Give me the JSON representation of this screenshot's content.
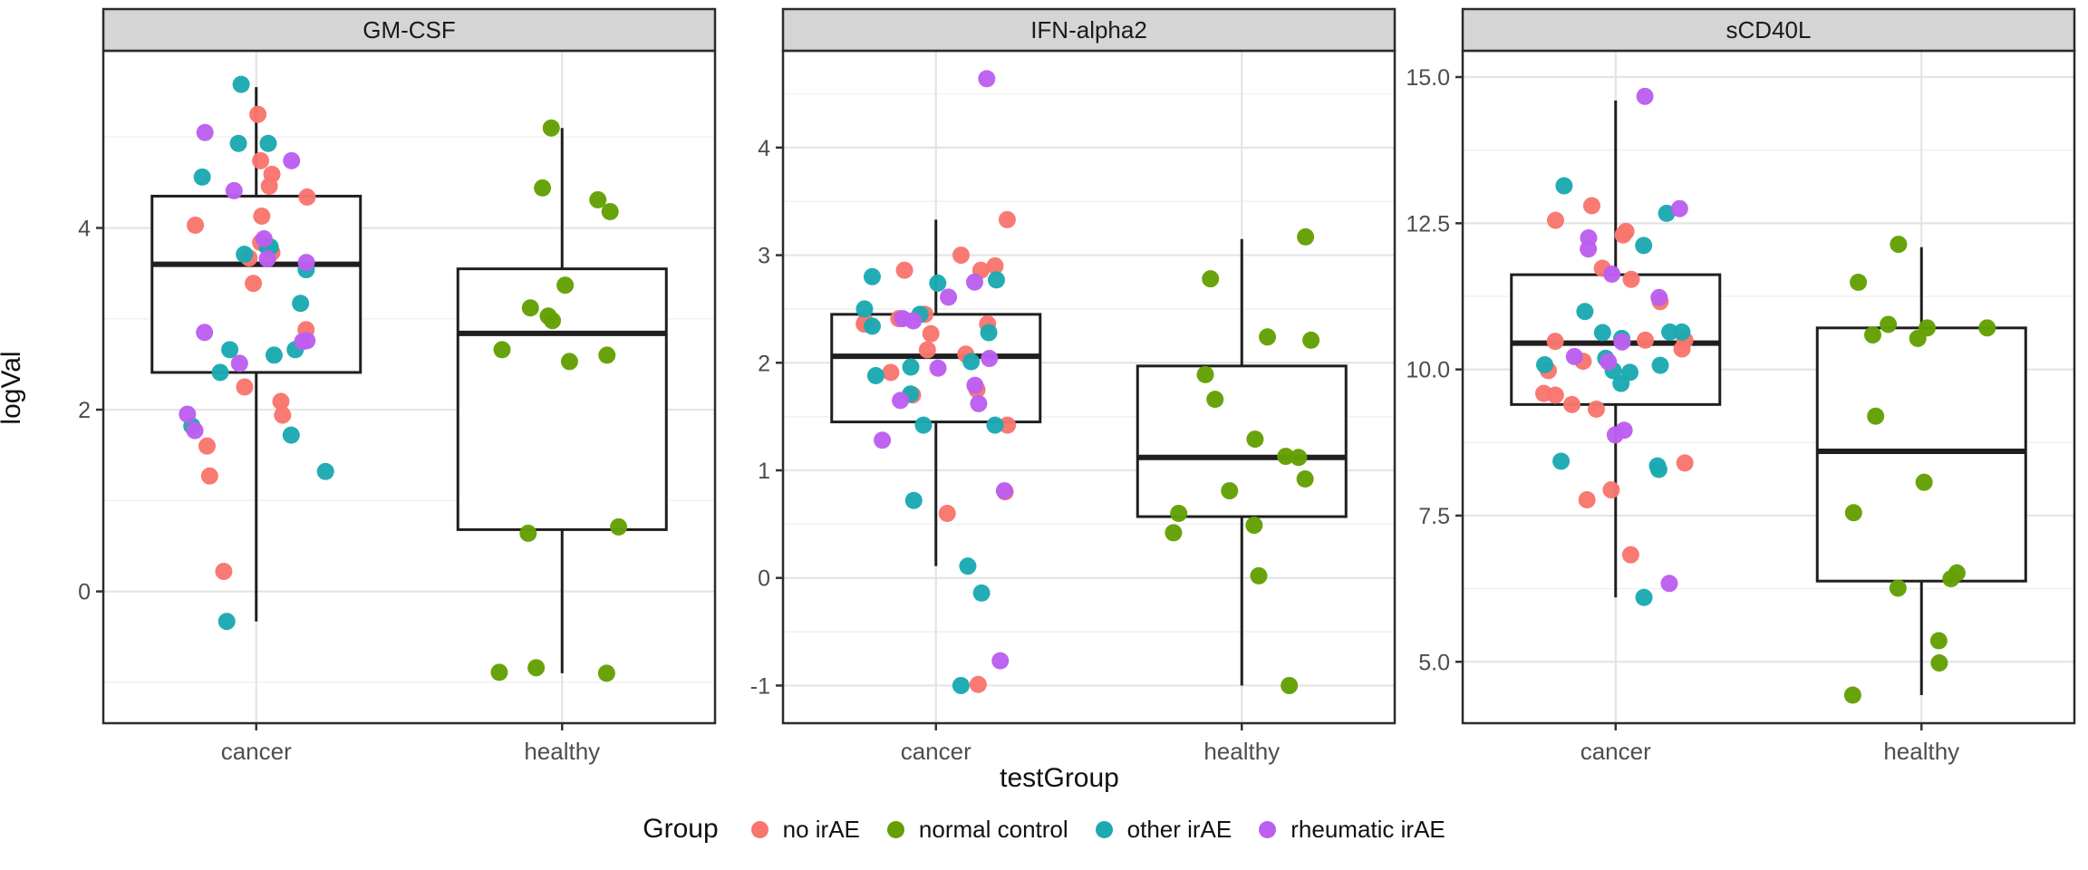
{
  "figure": {
    "y_axis_title": "logVal",
    "x_axis_title": "testGroup",
    "x_categories": [
      "cancer",
      "healthy"
    ],
    "style": {
      "background": "#FFFFFF",
      "panel_border": "#2B2B2B",
      "strip_fill": "#D5D5D5",
      "strip_border": "#2B2B2B",
      "grid_major": "#E4E4E4",
      "grid_minor": "#F1F1F1",
      "axis_text": "#4D4D4D",
      "box_stroke": "#1F1F1F"
    }
  },
  "legend": {
    "title": "Group",
    "items": [
      {
        "label": "no irAE",
        "color": "#F8766D"
      },
      {
        "label": "normal control",
        "color": "#64A004"
      },
      {
        "label": "other irAE",
        "color": "#1CA9B2"
      },
      {
        "label": "rheumatic irAE",
        "color": "#BC5FF0"
      }
    ]
  },
  "chart_data": [
    {
      "type": "boxplot+jitter",
      "title": "GM-CSF",
      "ylabel": "logVal",
      "y_domain": [
        -1.45,
        5.95
      ],
      "y_major_ticks": [
        {
          "value": 4,
          "label": "4"
        },
        {
          "value": 2,
          "label": "2"
        },
        {
          "value": 0,
          "label": "0"
        }
      ],
      "y_minor_ticks": [
        5,
        3,
        1,
        -1
      ],
      "groups": [
        {
          "category": "cancer",
          "box": {
            "whisker_low": -0.33,
            "q1": 2.41,
            "median": 3.6,
            "q3": 4.35,
            "whisker_high": 5.55
          },
          "points": [
            [
              0,
              5.25
            ],
            [
              0,
              4.74
            ],
            [
              0,
              4.59
            ],
            [
              0,
              4.46
            ],
            [
              0,
              4.34
            ],
            [
              0,
              4.13
            ],
            [
              0,
              4.03
            ],
            [
              0,
              3.84
            ],
            [
              0,
              3.73
            ],
            [
              0,
              3.67
            ],
            [
              0,
              3.39
            ],
            [
              0,
              2.88
            ],
            [
              0,
              2.25
            ],
            [
              0,
              2.09
            ],
            [
              0,
              1.94
            ],
            [
              0,
              1.6
            ],
            [
              0,
              1.27
            ],
            [
              0,
              0.22
            ],
            [
              2,
              5.58
            ],
            [
              2,
              4.93
            ],
            [
              2,
              4.93
            ],
            [
              2,
              4.56
            ],
            [
              2,
              3.79
            ],
            [
              2,
              3.79
            ],
            [
              2,
              3.71
            ],
            [
              2,
              3.54
            ],
            [
              2,
              3.17
            ],
            [
              2,
              2.66
            ],
            [
              2,
              2.66
            ],
            [
              2,
              2.6
            ],
            [
              2,
              2.41
            ],
            [
              2,
              1.82
            ],
            [
              2,
              1.72
            ],
            [
              2,
              1.32
            ],
            [
              2,
              -0.33
            ],
            [
              3,
              5.05
            ],
            [
              3,
              4.74
            ],
            [
              3,
              4.41
            ],
            [
              3,
              3.88
            ],
            [
              3,
              3.66
            ],
            [
              3,
              3.62
            ],
            [
              3,
              2.85
            ],
            [
              3,
              2.76
            ],
            [
              3,
              2.75
            ],
            [
              3,
              2.51
            ],
            [
              3,
              1.95
            ],
            [
              3,
              1.77
            ]
          ]
        },
        {
          "category": "healthy",
          "box": {
            "whisker_low": -0.9,
            "q1": 0.68,
            "median": 2.84,
            "q3": 3.55,
            "whisker_high": 5.1
          },
          "points": [
            [
              1,
              5.1
            ],
            [
              1,
              4.44
            ],
            [
              1,
              4.31
            ],
            [
              1,
              4.18
            ],
            [
              1,
              3.37
            ],
            [
              1,
              3.12
            ],
            [
              1,
              3.03
            ],
            [
              1,
              2.98
            ],
            [
              1,
              2.66
            ],
            [
              1,
              2.6
            ],
            [
              1,
              2.53
            ],
            [
              1,
              0.71
            ],
            [
              1,
              0.64
            ],
            [
              1,
              -0.84
            ],
            [
              1,
              -0.89
            ],
            [
              1,
              -0.9
            ]
          ]
        }
      ]
    },
    {
      "type": "boxplot+jitter",
      "title": "IFN-alpha2",
      "ylabel": "logVal",
      "y_domain": [
        -1.35,
        4.9
      ],
      "y_major_ticks": [
        {
          "value": 4,
          "label": "4"
        },
        {
          "value": 3,
          "label": "3"
        },
        {
          "value": 2,
          "label": "2"
        },
        {
          "value": 1,
          "label": "1"
        },
        {
          "value": 0,
          "label": "0"
        },
        {
          "value": -1,
          "label": "-1"
        }
      ],
      "y_minor_ticks": [
        4.5,
        3.5,
        2.5,
        1.5,
        0.5,
        -0.5
      ],
      "groups": [
        {
          "category": "cancer",
          "box": {
            "whisker_low": 0.11,
            "q1": 1.45,
            "median": 2.06,
            "q3": 2.45,
            "whisker_high": 3.33
          },
          "points": [
            [
              0,
              3.33
            ],
            [
              0,
              3.0
            ],
            [
              0,
              2.9
            ],
            [
              0,
              2.86
            ],
            [
              0,
              2.86
            ],
            [
              0,
              2.45
            ],
            [
              0,
              2.41
            ],
            [
              0,
              2.38
            ],
            [
              0,
              2.36
            ],
            [
              0,
              2.36
            ],
            [
              0,
              2.27
            ],
            [
              0,
              2.12
            ],
            [
              0,
              2.08
            ],
            [
              0,
              1.91
            ],
            [
              0,
              1.75
            ],
            [
              0,
              1.7
            ],
            [
              0,
              1.42
            ],
            [
              0,
              0.8
            ],
            [
              0,
              0.6
            ],
            [
              0,
              -0.99
            ],
            [
              2,
              2.8
            ],
            [
              2,
              2.77
            ],
            [
              2,
              2.74
            ],
            [
              2,
              2.5
            ],
            [
              2,
              2.45
            ],
            [
              2,
              2.34
            ],
            [
              2,
              2.28
            ],
            [
              2,
              2.01
            ],
            [
              2,
              1.96
            ],
            [
              2,
              1.88
            ],
            [
              2,
              1.71
            ],
            [
              2,
              1.42
            ],
            [
              2,
              1.42
            ],
            [
              2,
              0.72
            ],
            [
              2,
              0.11
            ],
            [
              2,
              -0.14
            ],
            [
              2,
              -1.0
            ],
            [
              3,
              4.64
            ],
            [
              3,
              2.75
            ],
            [
              3,
              2.61
            ],
            [
              3,
              2.41
            ],
            [
              3,
              2.39
            ],
            [
              3,
              2.04
            ],
            [
              3,
              1.95
            ],
            [
              3,
              1.79
            ],
            [
              3,
              1.65
            ],
            [
              3,
              1.62
            ],
            [
              3,
              1.28
            ],
            [
              3,
              0.81
            ],
            [
              3,
              -0.77
            ]
          ]
        },
        {
          "category": "healthy",
          "box": {
            "whisker_low": -1.0,
            "q1": 0.57,
            "median": 1.12,
            "q3": 1.97,
            "whisker_high": 3.15
          },
          "points": [
            [
              1,
              3.17
            ],
            [
              1,
              2.78
            ],
            [
              1,
              2.24
            ],
            [
              1,
              2.21
            ],
            [
              1,
              1.89
            ],
            [
              1,
              1.66
            ],
            [
              1,
              1.29
            ],
            [
              1,
              1.13
            ],
            [
              1,
              1.12
            ],
            [
              1,
              0.92
            ],
            [
              1,
              0.81
            ],
            [
              1,
              0.6
            ],
            [
              1,
              0.49
            ],
            [
              1,
              0.42
            ],
            [
              1,
              0.02
            ],
            [
              1,
              -1.0
            ]
          ]
        }
      ]
    },
    {
      "type": "boxplot+jitter",
      "title": "sCD40L",
      "ylabel": "logVal",
      "y_domain": [
        3.95,
        15.45
      ],
      "y_major_ticks": [
        {
          "value": 15,
          "label": "15.0"
        },
        {
          "value": 12.5,
          "label": "12.5"
        },
        {
          "value": 10,
          "label": "10.0"
        },
        {
          "value": 7.5,
          "label": "7.5"
        },
        {
          "value": 5,
          "label": "5.0"
        }
      ],
      "y_minor_ticks": [
        13.75,
        11.25,
        8.75,
        6.25
      ],
      "groups": [
        {
          "category": "cancer",
          "box": {
            "whisker_low": 6.1,
            "q1": 9.4,
            "median": 10.45,
            "q3": 11.62,
            "whisker_high": 14.6
          },
          "points": [
            [
              0,
              12.8
            ],
            [
              0,
              12.55
            ],
            [
              0,
              12.36
            ],
            [
              0,
              12.3
            ],
            [
              0,
              11.73
            ],
            [
              0,
              11.54
            ],
            [
              0,
              11.16
            ],
            [
              0,
              10.5
            ],
            [
              0,
              10.5
            ],
            [
              0,
              10.48
            ],
            [
              0,
              10.35
            ],
            [
              0,
              10.14
            ],
            [
              0,
              9.98
            ],
            [
              0,
              9.59
            ],
            [
              0,
              9.56
            ],
            [
              0,
              9.4
            ],
            [
              0,
              9.32
            ],
            [
              0,
              8.4
            ],
            [
              0,
              7.94
            ],
            [
              0,
              7.77
            ],
            [
              0,
              6.83
            ],
            [
              2,
              13.14
            ],
            [
              2,
              12.67
            ],
            [
              2,
              12.12
            ],
            [
              2,
              10.99
            ],
            [
              2,
              10.64
            ],
            [
              2,
              10.64
            ],
            [
              2,
              10.63
            ],
            [
              2,
              10.53
            ],
            [
              2,
              10.19
            ],
            [
              2,
              10.08
            ],
            [
              2,
              10.07
            ],
            [
              2,
              9.98
            ],
            [
              2,
              9.95
            ],
            [
              2,
              9.76
            ],
            [
              2,
              8.43
            ],
            [
              2,
              8.35
            ],
            [
              2,
              8.29
            ],
            [
              2,
              6.1
            ],
            [
              3,
              14.67
            ],
            [
              3,
              12.75
            ],
            [
              3,
              12.25
            ],
            [
              3,
              12.06
            ],
            [
              3,
              11.63
            ],
            [
              3,
              11.23
            ],
            [
              3,
              10.47
            ],
            [
              3,
              10.22
            ],
            [
              3,
              10.13
            ],
            [
              3,
              8.96
            ],
            [
              3,
              8.88
            ],
            [
              3,
              6.34
            ]
          ]
        },
        {
          "category": "healthy",
          "box": {
            "whisker_low": 4.43,
            "q1": 6.38,
            "median": 8.6,
            "q3": 10.71,
            "whisker_high": 12.09
          },
          "points": [
            [
              1,
              12.14
            ],
            [
              1,
              11.49
            ],
            [
              1,
              10.77
            ],
            [
              1,
              10.71
            ],
            [
              1,
              10.71
            ],
            [
              1,
              10.59
            ],
            [
              1,
              10.53
            ],
            [
              1,
              9.2
            ],
            [
              1,
              8.07
            ],
            [
              1,
              7.55
            ],
            [
              1,
              6.52
            ],
            [
              1,
              6.42
            ],
            [
              1,
              6.26
            ],
            [
              1,
              5.36
            ],
            [
              1,
              4.98
            ],
            [
              1,
              4.43
            ]
          ]
        }
      ]
    }
  ]
}
